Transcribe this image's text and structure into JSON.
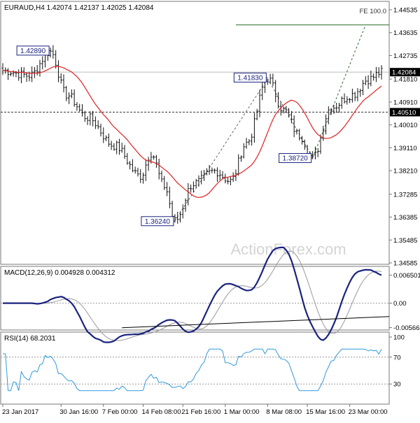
{
  "chart_data": [
    {
      "panel": "price",
      "type": "candlestick",
      "title": "EURAUD,H4  1.42074 1.42137 1.42025 1.42084",
      "symbol": "EURAUD",
      "timeframe": "H4",
      "ohlc": {
        "open": 1.42074,
        "high": 1.42137,
        "low": 1.42025,
        "close": 1.42084
      },
      "ylim": [
        1.34585,
        1.44535
      ],
      "y_ticks": [
        "1.44535",
        "1.43635",
        "1.42735",
        "1.41810",
        "1.40910",
        "1.40010",
        "1.39110",
        "1.38210",
        "1.37285",
        "1.36385",
        "1.35485",
        "1.34585"
      ],
      "current_price": {
        "value": 1.42084,
        "label": "1.42084"
      },
      "fe_level": {
        "value": 1.4394,
        "label": "FE 100.0"
      },
      "support_level": {
        "value": 1.4051,
        "label": "1.40510"
      },
      "annotations": [
        {
          "label": "1.42890",
          "value": 1.4289,
          "x_index": 18
        },
        {
          "label": "1.41830",
          "value": 1.4183,
          "x_index": 100
        },
        {
          "label": "1.36240",
          "value": 1.3624,
          "x_index": 65
        },
        {
          "label": "1.38720",
          "value": 1.3872,
          "x_index": 117
        }
      ],
      "fib_projection_points": [
        {
          "x_index": 65,
          "value": 1.3624
        },
        {
          "x_index": 100,
          "value": 1.4183
        },
        {
          "x_index": 117,
          "value": 1.3872
        }
      ],
      "ma_color": "#dd2222",
      "bar_color": "#111111",
      "watermark": "ActionForex.com"
    },
    {
      "panel": "macd",
      "type": "line",
      "title": "MACD(12,26,9) 0.004928 0.004312",
      "ylim": [
        -0.0059,
        0.0074
      ],
      "y_ticks": [
        "0.006501",
        "0.00",
        "-0.005666"
      ],
      "series": [
        {
          "name": "MACD",
          "color": "#1a237e"
        },
        {
          "name": "Signal",
          "color": "#999999"
        }
      ],
      "trendline": [
        {
          "x_index": 45,
          "value": -0.0057
        },
        {
          "x_index": 139,
          "value": -0.0031
        }
      ]
    },
    {
      "panel": "rsi",
      "type": "line",
      "title": "RSI(14) 68.2031",
      "ylim": [
        0,
        100
      ],
      "y_ticks": [
        "100",
        "70",
        "30",
        "0"
      ],
      "levels": [
        70,
        30
      ],
      "series": [
        {
          "name": "RSI",
          "color": "#3399dd"
        }
      ]
    }
  ],
  "x_axis": {
    "labels": [
      {
        "text": "23 Jan 2017",
        "x_index": 0
      },
      {
        "text": "30 Jan 16:00",
        "x_index": 22
      },
      {
        "text": "7 Feb 00:00",
        "x_index": 38
      },
      {
        "text": "14 Feb 08:00",
        "x_index": 53
      },
      {
        "text": "21 Feb 16:00",
        "x_index": 68
      },
      {
        "text": "1 Mar 00:00",
        "x_index": 84
      },
      {
        "text": "8 Mar 08:00",
        "x_index": 100
      },
      {
        "text": "15 Mar 16:00",
        "x_index": 115
      },
      {
        "text": "23 Mar 00:00",
        "x_index": 131
      }
    ]
  }
}
